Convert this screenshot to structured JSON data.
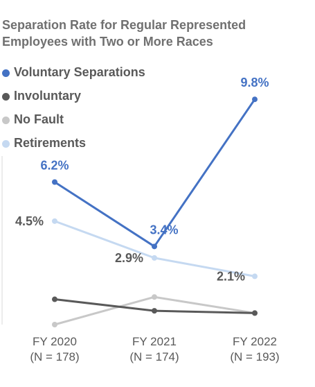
{
  "chart_data": {
    "type": "line",
    "title": "Separation Rate for Regular Represented Employees with Two or More Races",
    "categories": [
      {
        "label": "FY 2020",
        "n": "(N = 178)"
      },
      {
        "label": "FY 2021",
        "n": "(N = 174)"
      },
      {
        "label": "FY 2022",
        "n": "(N = 193)"
      }
    ],
    "legend_position": "top-left",
    "ylim": [
      0,
      10.5
    ],
    "grid": false,
    "series": [
      {
        "name": "Voluntary Separations",
        "color": "#4472C4",
        "values": [
          6.2,
          3.4,
          9.8
        ],
        "labels": [
          "6.2%",
          "3.4%",
          "9.8%"
        ],
        "label_color": "#4472C4"
      },
      {
        "name": "Involuntary",
        "color": "#595959",
        "values": [
          1.1,
          0.6,
          0.5
        ],
        "labels": [
          "",
          "",
          ""
        ],
        "label_color": "#595959"
      },
      {
        "name": "No Fault",
        "color": "#C8C8C8",
        "values": [
          0.0,
          1.2,
          0.5
        ],
        "labels": [
          "",
          "",
          ""
        ],
        "label_color": "#595959"
      },
      {
        "name": "Retirements",
        "color": "#C5D9F1",
        "values": [
          4.5,
          2.9,
          2.1
        ],
        "labels": [
          "4.5%",
          "2.9%",
          "2.1%"
        ],
        "label_color": "#595959"
      }
    ]
  }
}
